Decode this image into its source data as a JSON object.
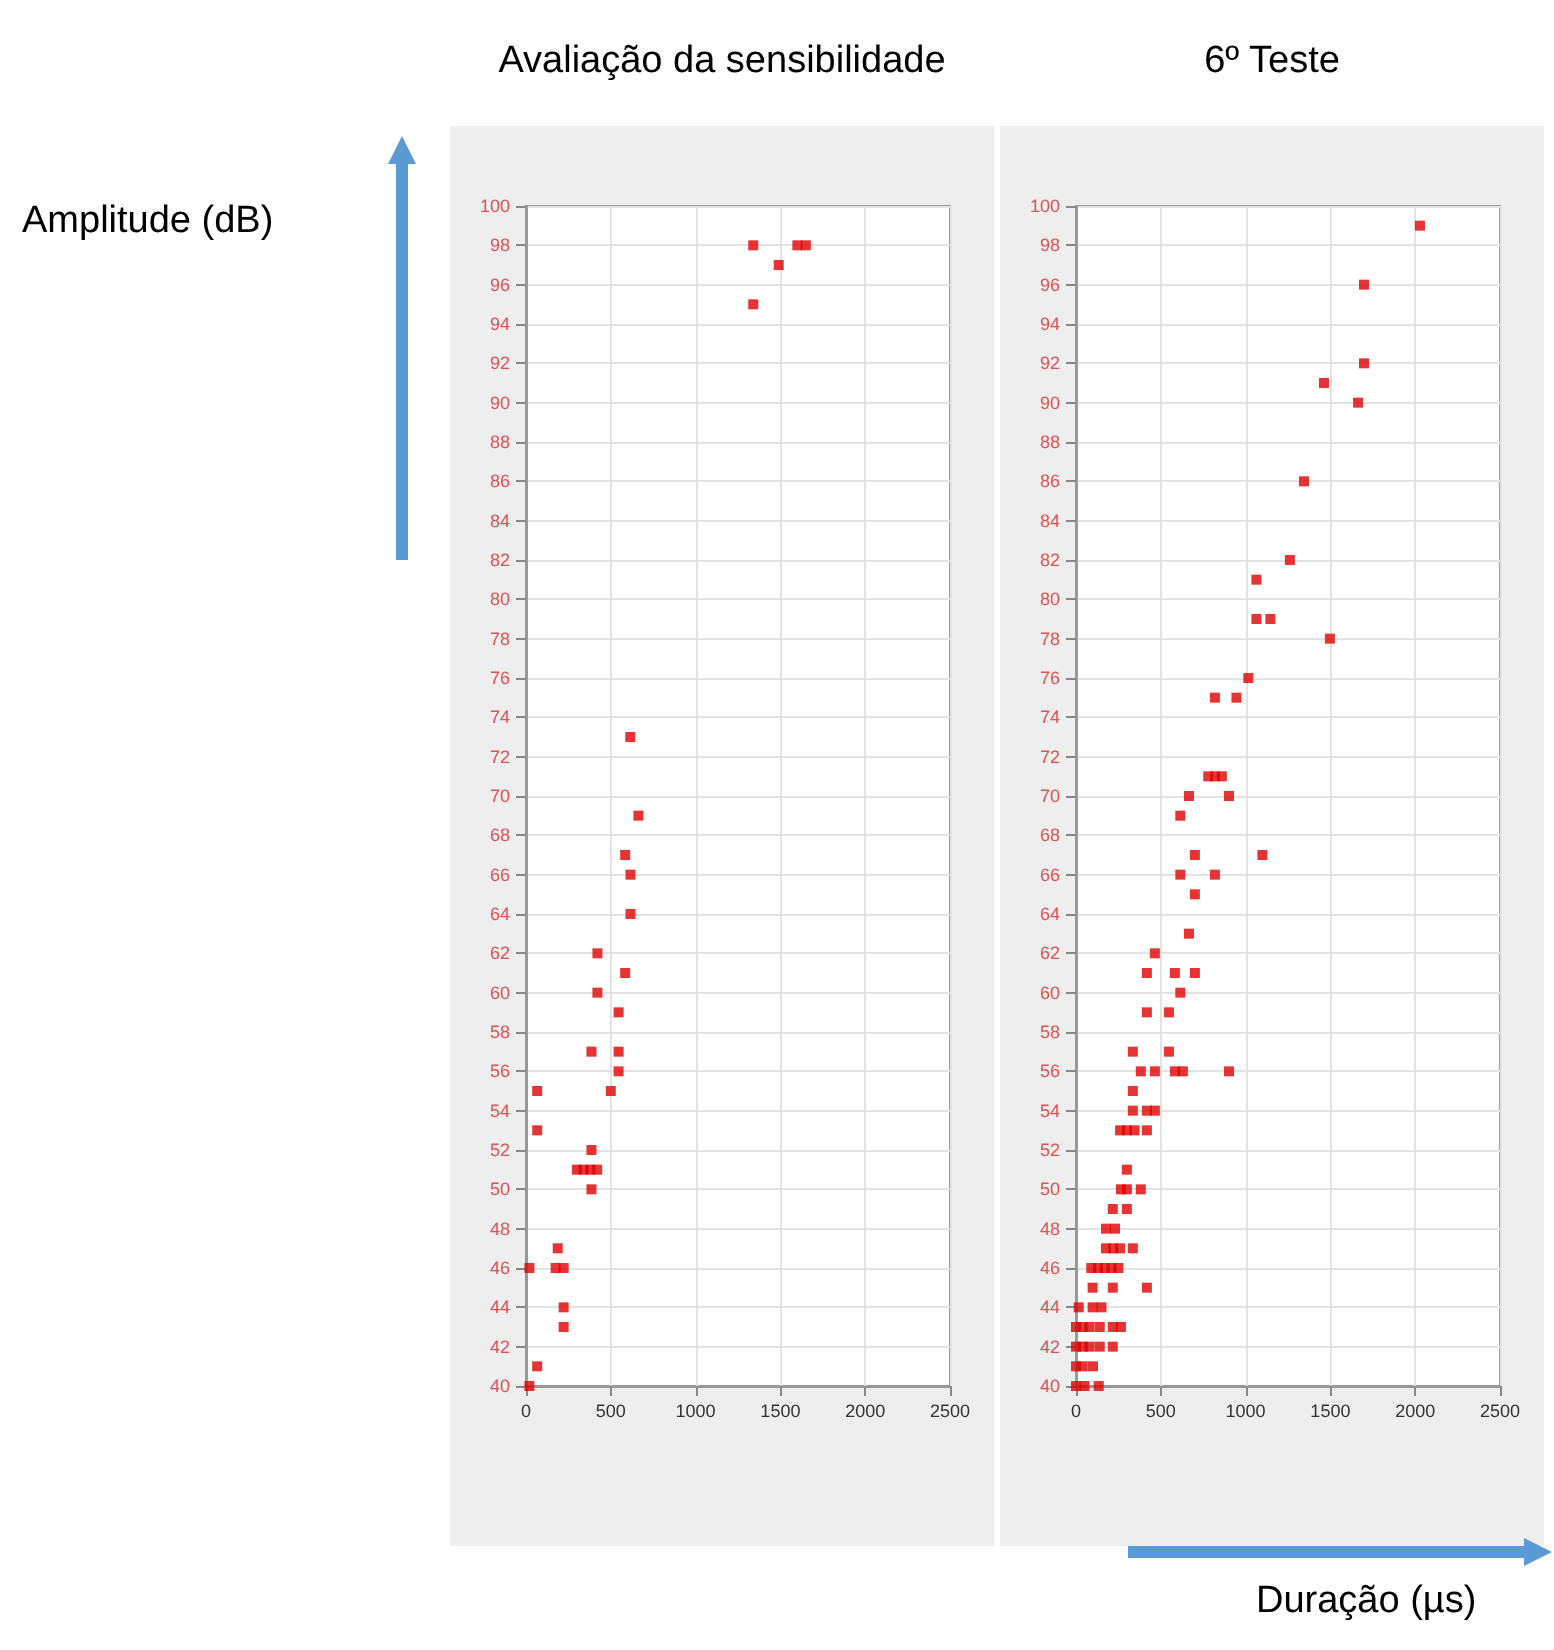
{
  "chart_data": [
    {
      "type": "scatter",
      "title": "Avaliação da sensibilidade",
      "ylabel": "Amplitude (dB)",
      "color": "#e00000",
      "marker": "square",
      "grid": true,
      "xlim": [
        0,
        2500
      ],
      "ylim": [
        40,
        100
      ],
      "xticks": [
        0,
        500,
        1000,
        1500,
        2000,
        2500
      ],
      "yticks": [
        40,
        42,
        44,
        46,
        48,
        50,
        52,
        54,
        56,
        58,
        60,
        62,
        64,
        66,
        68,
        70,
        72,
        74,
        76,
        78,
        80,
        82,
        84,
        86,
        88,
        90,
        92,
        94,
        96,
        98,
        100
      ],
      "x": [
        1340,
        1490,
        1600,
        1650,
        1340,
        615,
        663,
        585,
        616,
        616,
        421,
        585,
        421,
        546,
        386,
        546,
        546,
        500,
        66,
        66,
        386,
        300,
        340,
        380,
        420,
        386,
        187,
        20,
        175,
        222,
        222,
        222,
        66,
        20
      ],
      "values": [
        98,
        97,
        98,
        98,
        95,
        73,
        69,
        67,
        66,
        64,
        62,
        61,
        60,
        59,
        57,
        57,
        56,
        55,
        55,
        53,
        52,
        51,
        51,
        51,
        51,
        50,
        47,
        46,
        46,
        46,
        44,
        43,
        41,
        40
      ]
    },
    {
      "type": "scatter",
      "title": "6º Teste",
      "xlabel": "Duração (µs)",
      "color": "#e00000",
      "marker": "square",
      "grid": true,
      "xlim": [
        0,
        2500
      ],
      "ylim": [
        40,
        100
      ],
      "xticks": [
        0,
        500,
        1000,
        1500,
        2000,
        2500
      ],
      "yticks": [
        40,
        42,
        44,
        46,
        48,
        50,
        52,
        54,
        56,
        58,
        60,
        62,
        64,
        66,
        68,
        70,
        72,
        74,
        76,
        78,
        80,
        82,
        84,
        86,
        88,
        90,
        92,
        94,
        96,
        98,
        100
      ],
      "x": [
        2028,
        1698,
        1698,
        1462,
        1663,
        1344,
        1261,
        1064,
        1064,
        1146,
        1497,
        1016,
        819,
        946,
        780,
        820,
        860,
        666,
        902,
        615,
        701,
        1099,
        615,
        819,
        701,
        666,
        465,
        418,
        583,
        701,
        615,
        418,
        548,
        335,
        548,
        382,
        465,
        583,
        630,
        902,
        335,
        335,
        418,
        465,
        260,
        300,
        345,
        418,
        300,
        265,
        300,
        382,
        217,
        300,
        177,
        230,
        177,
        220,
        260,
        335,
        90,
        130,
        170,
        210,
        250,
        98,
        217,
        418,
        16,
        98,
        150,
        0,
        40,
        80,
        140,
        217,
        265,
        0,
        40,
        80,
        140,
        217,
        0,
        40,
        100,
        0,
        50,
        134
      ],
      "values": [
        99,
        96,
        92,
        91,
        90,
        86,
        82,
        81,
        79,
        79,
        78,
        76,
        75,
        75,
        71,
        71,
        71,
        70,
        70,
        69,
        67,
        67,
        66,
        66,
        65,
        63,
        62,
        61,
        61,
        61,
        60,
        59,
        59,
        57,
        57,
        56,
        56,
        56,
        56,
        56,
        55,
        54,
        54,
        54,
        53,
        53,
        53,
        53,
        51,
        50,
        50,
        50,
        49,
        49,
        48,
        48,
        47,
        47,
        47,
        47,
        46,
        46,
        46,
        46,
        46,
        45,
        45,
        45,
        44,
        44,
        44,
        43,
        43,
        43,
        43,
        43,
        43,
        42,
        42,
        42,
        42,
        42,
        41,
        41,
        41,
        40,
        40,
        40
      ]
    }
  ]
}
